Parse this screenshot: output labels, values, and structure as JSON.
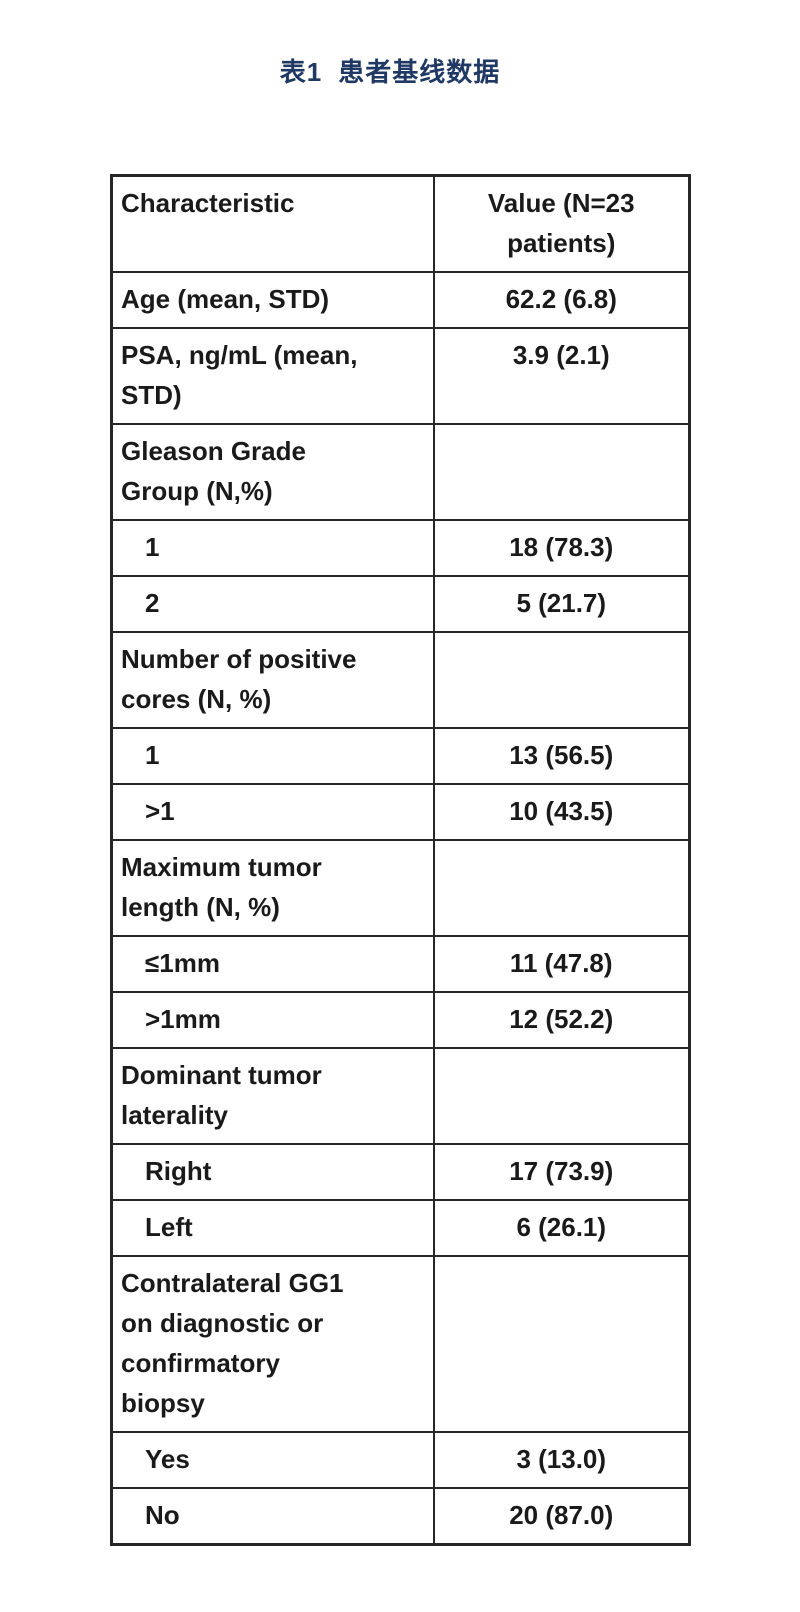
{
  "page": {
    "caption_number": "表1",
    "caption_text": "患者基线数据",
    "caption_color": "#1f3864"
  },
  "table": {
    "columns": [
      "Characteristic",
      "Value (N=23\npatients)"
    ],
    "rows": [
      {
        "label": "Age (mean, STD)",
        "value": "62.2 (6.8)",
        "indent": false
      },
      {
        "label": "PSA, ng/mL (mean,\nSTD)",
        "value": "3.9 (2.1)",
        "indent": false
      },
      {
        "label": "Gleason Grade\nGroup (N,%)",
        "value": "",
        "indent": false
      },
      {
        "label": "1",
        "value": "18 (78.3)",
        "indent": true
      },
      {
        "label": "2",
        "value": "5 (21.7)",
        "indent": true
      },
      {
        "label": "Number of positive\ncores (N, %)",
        "value": "",
        "indent": false
      },
      {
        "label": "1",
        "value": "13 (56.5)",
        "indent": true
      },
      {
        "label": ">1",
        "value": "10 (43.5)",
        "indent": true
      },
      {
        "label": "Maximum tumor\nlength (N, %)",
        "value": "",
        "indent": false
      },
      {
        "label": "≤1mm",
        "value": "11 (47.8)",
        "indent": true
      },
      {
        "label": ">1mm",
        "value": "12 (52.2)",
        "indent": true
      },
      {
        "label": "Dominant tumor\nlaterality",
        "value": "",
        "indent": false
      },
      {
        "label": "Right",
        "value": "17 (73.9)",
        "indent": true
      },
      {
        "label": "Left",
        "value": "6 (26.1)",
        "indent": true
      },
      {
        "label": "Contralateral GG1\non diagnostic or\nconfirmatory\nbiopsy",
        "value": "",
        "indent": false
      },
      {
        "label": "Yes",
        "value": "3 (13.0)",
        "indent": true
      },
      {
        "label": "No",
        "value": "20 (87.0)",
        "indent": true
      }
    ]
  }
}
